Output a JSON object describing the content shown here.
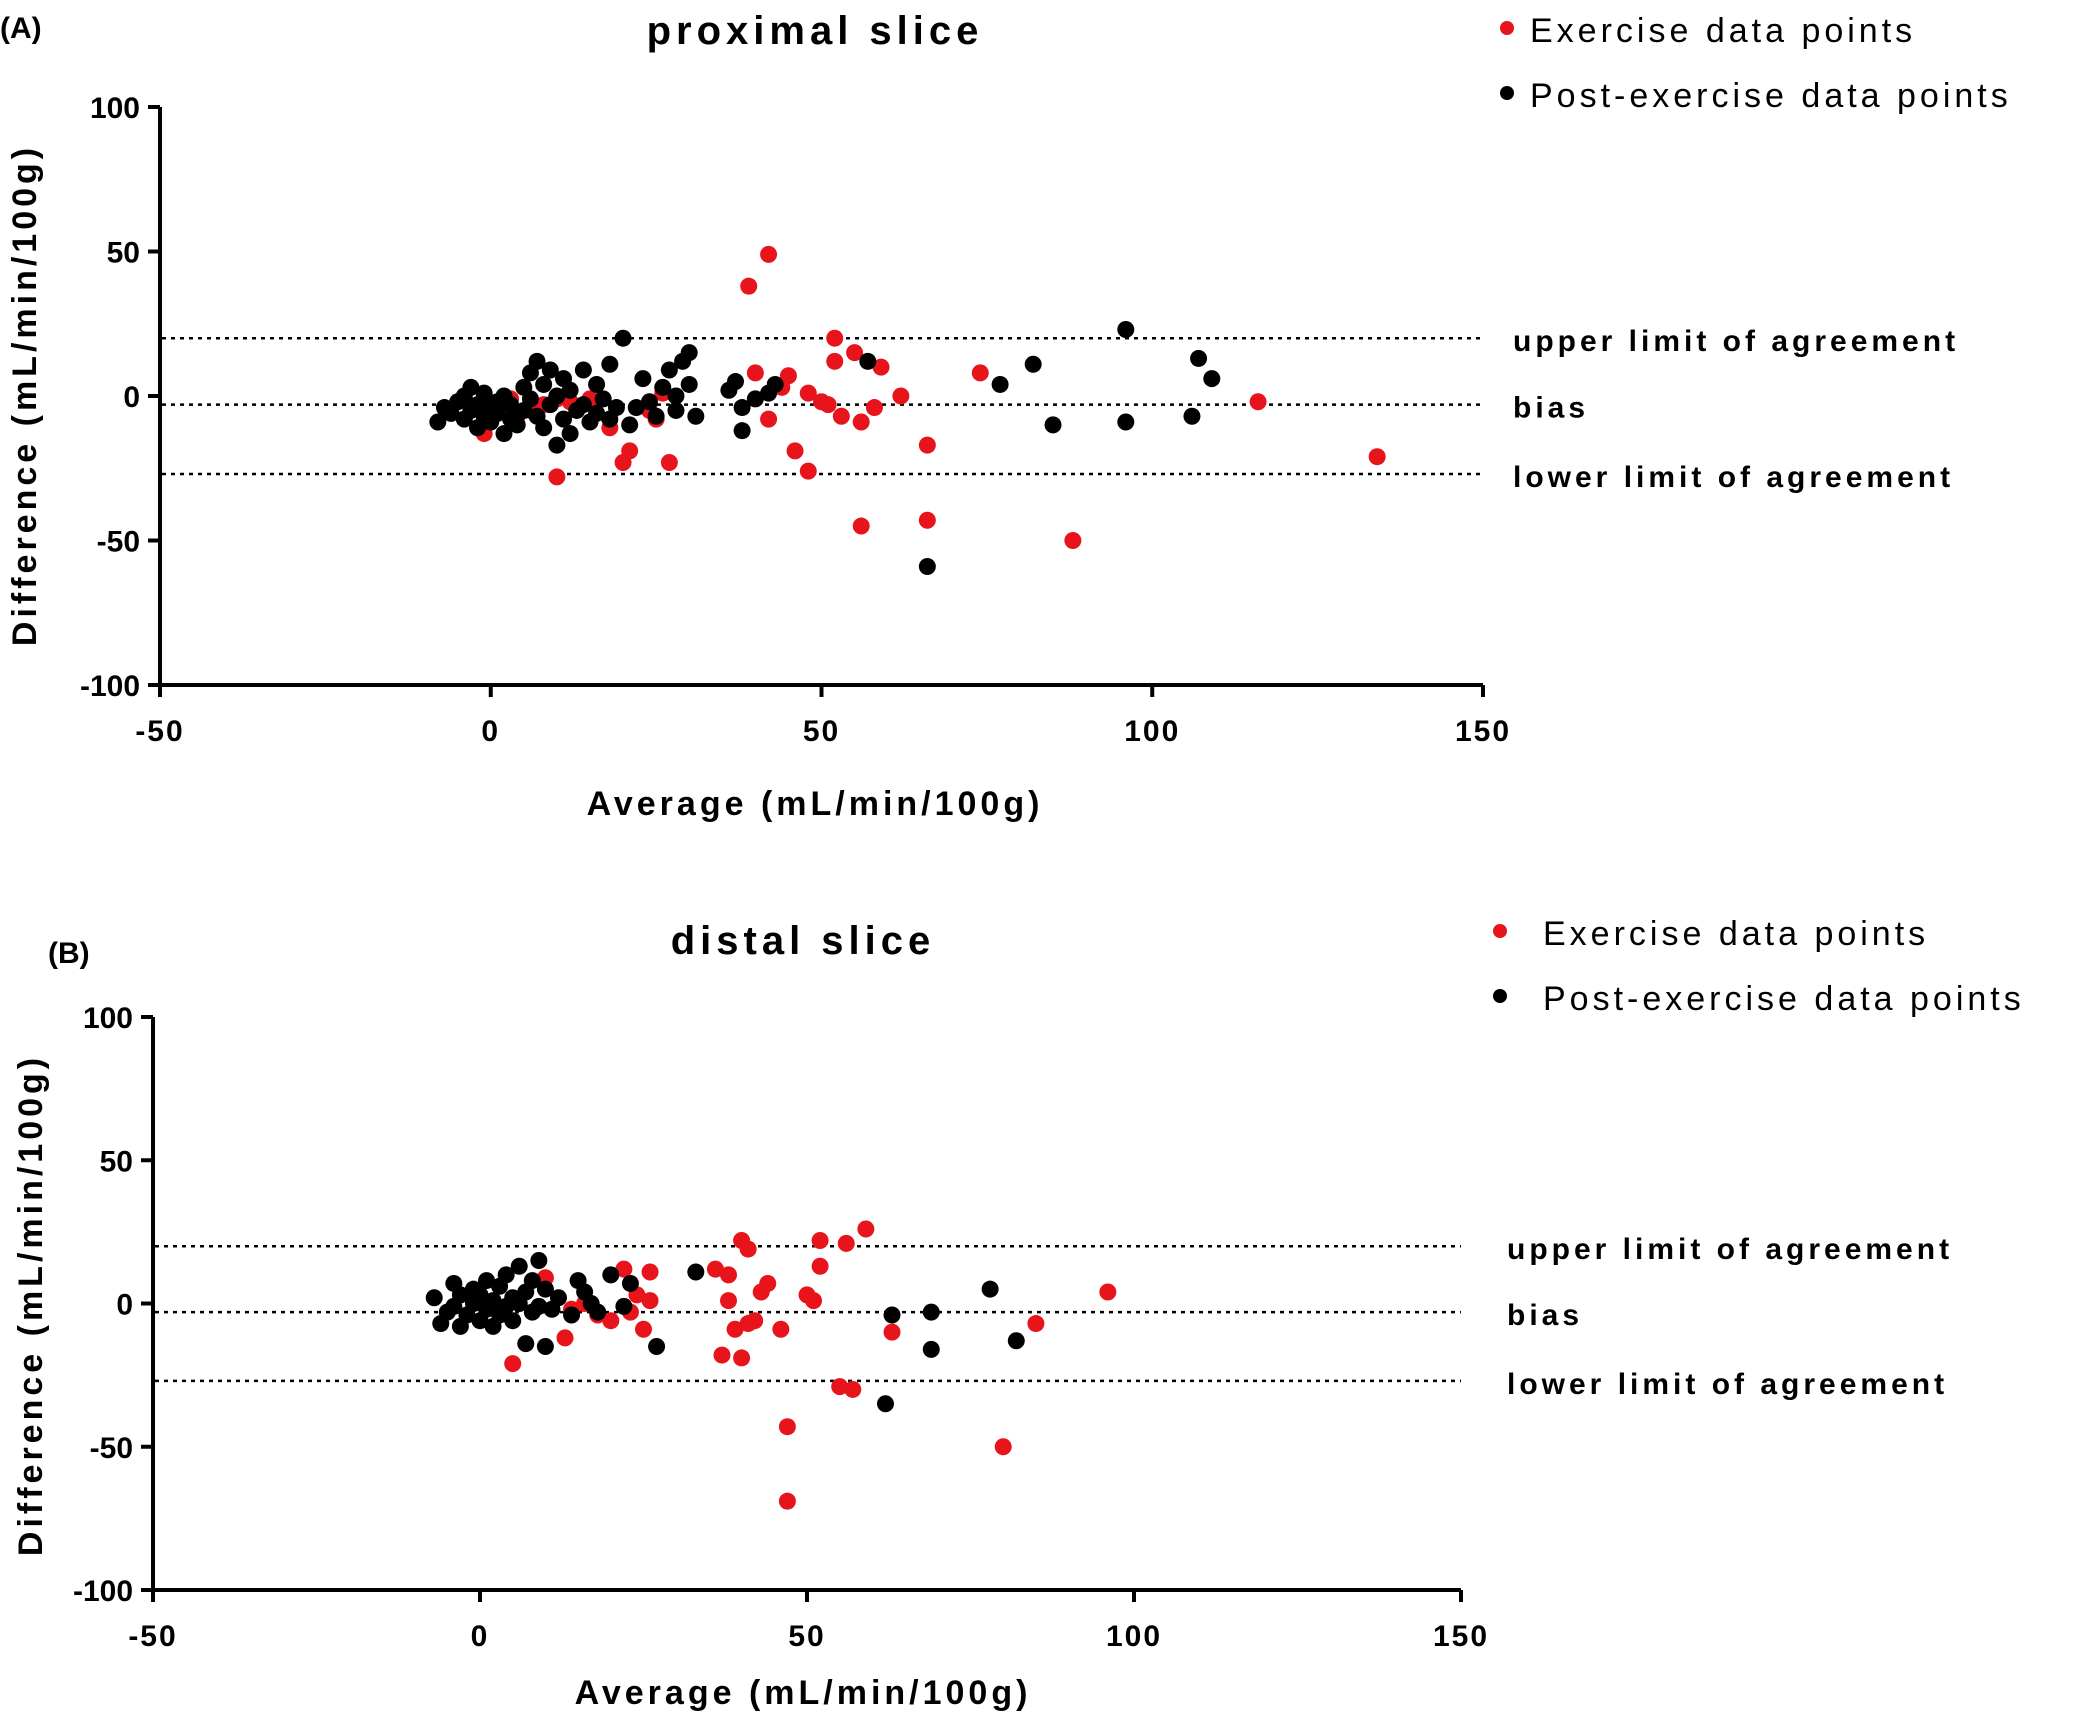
{
  "chart_data": [
    {
      "type": "scatter",
      "panel_label": "(A)",
      "title": "proximal slice",
      "xlabel": "Average (mL/min/100g)",
      "ylabel": "Difference (mL/min/100g)",
      "xlim": [
        -50,
        150
      ],
      "ylim": [
        -100,
        100
      ],
      "xticks": [
        "-50",
        "0",
        "50",
        "100",
        "150"
      ],
      "yticks": [
        "100",
        "50",
        "0",
        "-50",
        "-100"
      ],
      "legend_position": "top-right",
      "reference_lines": [
        {
          "label": "upper limit of agreement",
          "y": 20
        },
        {
          "label": "bias",
          "y": -3
        },
        {
          "label": "lower limit of agreement",
          "y": -27
        }
      ],
      "series": [
        {
          "name": "Exercise data points",
          "color": "#e8141b",
          "points": [
            [
              39,
              38
            ],
            [
              42,
              49
            ],
            [
              52,
              20
            ],
            [
              52,
              12
            ],
            [
              55,
              15
            ],
            [
              59,
              10
            ],
            [
              40,
              8
            ],
            [
              45,
              7
            ],
            [
              44,
              3
            ],
            [
              48,
              1
            ],
            [
              50,
              -2
            ],
            [
              53,
              -7
            ],
            [
              56,
              -9
            ],
            [
              58,
              -4
            ],
            [
              62,
              0
            ],
            [
              42,
              -8
            ],
            [
              51,
              -3
            ],
            [
              46,
              -19
            ],
            [
              48,
              -26
            ],
            [
              66,
              -17
            ],
            [
              74,
              8
            ],
            [
              116,
              -2
            ],
            [
              134,
              -21
            ],
            [
              56,
              -45
            ],
            [
              66,
              -43
            ],
            [
              88,
              -50
            ],
            [
              10,
              -28
            ],
            [
              20,
              -23
            ],
            [
              21,
              -19
            ],
            [
              27,
              -23
            ],
            [
              24,
              -5
            ],
            [
              25,
              -8
            ],
            [
              26,
              1
            ],
            [
              18,
              -11
            ],
            [
              15,
              -1
            ],
            [
              12,
              -2
            ],
            [
              10,
              -1
            ],
            [
              8,
              -3
            ],
            [
              6,
              -5
            ],
            [
              4,
              -7
            ],
            [
              3,
              -1
            ],
            [
              -1,
              -13
            ]
          ]
        },
        {
          "name": "Post-exercise data points",
          "color": "#000000",
          "points": [
            [
              -8,
              -9
            ],
            [
              -7,
              -4
            ],
            [
              -6,
              -6
            ],
            [
              -5,
              -2
            ],
            [
              -4,
              -8
            ],
            [
              -4,
              0
            ],
            [
              -3,
              -5
            ],
            [
              -3,
              3
            ],
            [
              -2,
              -11
            ],
            [
              -2,
              -3
            ],
            [
              -1,
              -7
            ],
            [
              -1,
              1
            ],
            [
              0,
              -4
            ],
            [
              0,
              -9
            ],
            [
              1,
              -2
            ],
            [
              1,
              -6
            ],
            [
              2,
              -13
            ],
            [
              2,
              0
            ],
            [
              3,
              -8
            ],
            [
              3,
              -3
            ],
            [
              4,
              -10
            ],
            [
              5,
              3
            ],
            [
              5,
              -5
            ],
            [
              6,
              8
            ],
            [
              6,
              -1
            ],
            [
              7,
              -7
            ],
            [
              7,
              12
            ],
            [
              8,
              4
            ],
            [
              8,
              -11
            ],
            [
              9,
              -3
            ],
            [
              9,
              9
            ],
            [
              10,
              -17
            ],
            [
              10,
              0
            ],
            [
              11,
              6
            ],
            [
              11,
              -8
            ],
            [
              12,
              -13
            ],
            [
              12,
              2
            ],
            [
              13,
              -5
            ],
            [
              14,
              9
            ],
            [
              14,
              -3
            ],
            [
              15,
              -9
            ],
            [
              16,
              4
            ],
            [
              16,
              -6
            ],
            [
              17,
              -1
            ],
            [
              18,
              11
            ],
            [
              18,
              -8
            ],
            [
              19,
              -4
            ],
            [
              20,
              20
            ],
            [
              21,
              -10
            ],
            [
              22,
              -4
            ],
            [
              23,
              6
            ],
            [
              24,
              -2
            ],
            [
              25,
              -7
            ],
            [
              26,
              3
            ],
            [
              27,
              9
            ],
            [
              28,
              -5
            ],
            [
              28,
              0
            ],
            [
              29,
              12
            ],
            [
              30,
              4
            ],
            [
              30,
              15
            ],
            [
              31,
              -7
            ],
            [
              36,
              2
            ],
            [
              37,
              5
            ],
            [
              38,
              -4
            ],
            [
              38,
              -12
            ],
            [
              40,
              -1
            ],
            [
              42,
              1
            ],
            [
              43,
              4
            ],
            [
              57,
              12
            ],
            [
              66,
              -59
            ],
            [
              77,
              4
            ],
            [
              82,
              11
            ],
            [
              85,
              -10
            ],
            [
              96,
              -9
            ],
            [
              96,
              23
            ],
            [
              106,
              -7
            ],
            [
              107,
              13
            ],
            [
              109,
              6
            ]
          ]
        }
      ]
    },
    {
      "type": "scatter",
      "panel_label": "(B)",
      "title": "distal slice",
      "xlabel": "Average (mL/min/100g)",
      "ylabel": "Difference (mL/min/100g)",
      "xlim": [
        -50,
        150
      ],
      "ylim": [
        -100,
        100
      ],
      "xticks": [
        "-50",
        "0",
        "50",
        "100",
        "150"
      ],
      "yticks": [
        "100",
        "50",
        "0",
        "-50",
        "-100"
      ],
      "legend_position": "top-right",
      "reference_lines": [
        {
          "label": "upper limit of agreement",
          "y": 20
        },
        {
          "label": "bias",
          "y": -3
        },
        {
          "label": "lower limit of agreement",
          "y": -27
        }
      ],
      "series": [
        {
          "name": "Exercise data points",
          "color": "#e8141b",
          "points": [
            [
              40,
              22
            ],
            [
              41,
              19
            ],
            [
              52,
              22
            ],
            [
              56,
              21
            ],
            [
              59,
              26
            ],
            [
              52,
              13
            ],
            [
              36,
              12
            ],
            [
              38,
              10
            ],
            [
              44,
              7
            ],
            [
              43,
              4
            ],
            [
              38,
              1
            ],
            [
              50,
              3
            ],
            [
              51,
              1
            ],
            [
              39,
              -9
            ],
            [
              41,
              -7
            ],
            [
              42,
              -6
            ],
            [
              46,
              -9
            ],
            [
              40,
              -19
            ],
            [
              37,
              -18
            ],
            [
              55,
              -29
            ],
            [
              57,
              -30
            ],
            [
              63,
              -10
            ],
            [
              85,
              -7
            ],
            [
              96,
              4
            ],
            [
              47,
              -43
            ],
            [
              80,
              -50
            ],
            [
              47,
              -69
            ],
            [
              5,
              -21
            ],
            [
              10,
              9
            ],
            [
              13,
              -12
            ],
            [
              14,
              -2
            ],
            [
              16,
              0
            ],
            [
              18,
              -4
            ],
            [
              20,
              -6
            ],
            [
              22,
              12
            ],
            [
              23,
              -3
            ],
            [
              24,
              3
            ],
            [
              25,
              -9
            ],
            [
              26,
              11
            ],
            [
              26,
              1
            ]
          ]
        },
        {
          "name": "Post-exercise data points",
          "color": "#000000",
          "points": [
            [
              -7,
              2
            ],
            [
              -6,
              -7
            ],
            [
              -5,
              -3
            ],
            [
              -4,
              7
            ],
            [
              -4,
              -1
            ],
            [
              -3,
              3
            ],
            [
              -3,
              -8
            ],
            [
              -2,
              -4
            ],
            [
              -1,
              5
            ],
            [
              -1,
              0
            ],
            [
              0,
              -6
            ],
            [
              0,
              3
            ],
            [
              1,
              8
            ],
            [
              1,
              -2
            ],
            [
              2,
              -8
            ],
            [
              2,
              1
            ],
            [
              3,
              6
            ],
            [
              3,
              -4
            ],
            [
              4,
              10
            ],
            [
              4,
              -1
            ],
            [
              5,
              2
            ],
            [
              5,
              -6
            ],
            [
              6,
              13
            ],
            [
              6,
              0
            ],
            [
              7,
              -14
            ],
            [
              7,
              4
            ],
            [
              8,
              -3
            ],
            [
              8,
              8
            ],
            [
              9,
              15
            ],
            [
              9,
              -1
            ],
            [
              10,
              -15
            ],
            [
              10,
              5
            ],
            [
              11,
              -2
            ],
            [
              12,
              2
            ],
            [
              14,
              -4
            ],
            [
              15,
              8
            ],
            [
              16,
              4
            ],
            [
              17,
              0
            ],
            [
              18,
              -3
            ],
            [
              20,
              10
            ],
            [
              22,
              -1
            ],
            [
              23,
              7
            ],
            [
              27,
              -15
            ],
            [
              33,
              11
            ],
            [
              62,
              -35
            ],
            [
              63,
              -4
            ],
            [
              69,
              -16
            ],
            [
              69,
              -3
            ],
            [
              78,
              5
            ],
            [
              82,
              -13
            ]
          ]
        }
      ]
    }
  ]
}
